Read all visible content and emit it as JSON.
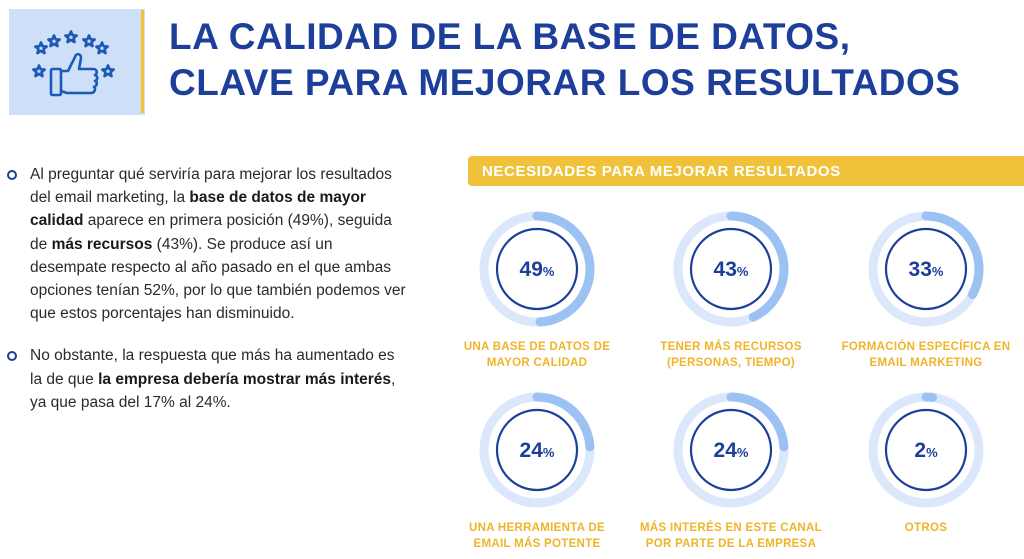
{
  "title": {
    "line1": "LA CALIDAD DE LA BASE DE DATOS,",
    "line2": "CLAVE PARA MEJORAR LOS RESULTADOS"
  },
  "bullets": [
    {
      "p1": "Al preguntar qué serviría para mejorar los resultados del email marketing, la ",
      "b1": "base de datos de mayor calidad",
      "p2": " aparece en primera posición (49%), seguida de ",
      "b2": "más recursos",
      "p3": " (43%). Se produce así un desempate respecto al año pasado en el que ambas opciones tenían 52%, por lo que también podemos ver que estos porcentajes han disminuido."
    },
    {
      "p1": "No obstante, la respuesta que más ha aumentado es la de que ",
      "b1": "la empresa debería mostrar más interés",
      "p2": ", ya que pasa del 17% al 24%."
    }
  ],
  "needs_header": "NECESIDADES PARA MEJORAR RESULTADOS",
  "stats": [
    {
      "value": "49",
      "unit": "%",
      "fraction": 0.49,
      "label1": "UNA BASE DE DATOS DE",
      "label2": "MAYOR CALIDAD"
    },
    {
      "value": "43",
      "unit": "%",
      "fraction": 0.43,
      "label1": "TENER MÁS RECURSOS",
      "label2": "(PERSONAS, TIEMPO)"
    },
    {
      "value": "33",
      "unit": "%",
      "fraction": 0.33,
      "label1": "FORMACIÓN ESPECÍFICA EN",
      "label2": "EMAIL MARKETING"
    },
    {
      "value": "24",
      "unit": "%",
      "fraction": 0.24,
      "label1": "UNA HERRAMIENTA DE",
      "label2": "EMAIL MÁS POTENTE"
    },
    {
      "value": "24",
      "unit": "%",
      "fraction": 0.24,
      "label1": "MÁS INTERÉS EN ESTE CANAL",
      "label2": "POR PARTE DE LA EMPRESA"
    },
    {
      "value": "2",
      "unit": "%",
      "fraction": 0.02,
      "label1": "OTROS",
      "label2": ""
    }
  ],
  "colors": {
    "primary": "#1d3f9a",
    "accent": "#f0c23a",
    "label": "#f0b429",
    "ring_track": "#dbe8fb",
    "ring_fill": "#9cc2f3",
    "icon_bg": "#cde0f7",
    "icon_stroke": "#1d5ab8"
  },
  "icon": "thumbs-up-stars-icon"
}
